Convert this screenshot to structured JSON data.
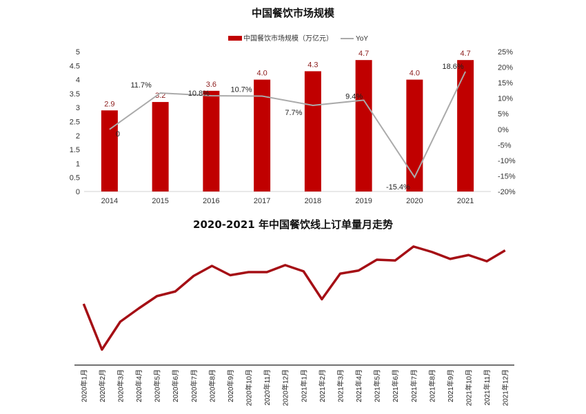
{
  "chart_data": [
    {
      "type": "bar+line",
      "title": "中国餐饮市场规模",
      "categories": [
        "2014",
        "2015",
        "2016",
        "2017",
        "2018",
        "2019",
        "2020",
        "2021"
      ],
      "series": [
        {
          "name": "中国餐饮市场规模（万亿元）",
          "type": "bar",
          "axis": "left",
          "color": "#c00000",
          "values": [
            2.9,
            3.2,
            3.6,
            4.0,
            4.3,
            4.7,
            4.0,
            4.7
          ],
          "labels": [
            "2.9",
            "3.2",
            "3.6",
            "4.0",
            "4.3",
            "4.7",
            "4.0",
            "4.7"
          ]
        },
        {
          "name": "YoY",
          "type": "line",
          "axis": "right",
          "color": "#aaaaaa",
          "values": [
            0,
            11.7,
            10.8,
            10.7,
            7.7,
            9.4,
            -15.4,
            18.6
          ],
          "labels": [
            "0",
            "11.7%",
            "10.8%",
            "10.7%",
            "7.7%",
            "9.4%",
            "-15.4%",
            "18.6%"
          ]
        }
      ],
      "ylim": [
        0,
        5
      ],
      "yticks": [
        "0",
        "0.5",
        "1",
        "1.5",
        "2",
        "2.5",
        "3",
        "3.5",
        "4",
        "4.5",
        "5"
      ],
      "y2lim": [
        -20,
        25
      ],
      "y2ticks": [
        "-20%",
        "-15%",
        "-10%",
        "-5%",
        "0%",
        "5%",
        "10%",
        "15%",
        "20%",
        "25%"
      ],
      "legend": "top",
      "grid": false
    },
    {
      "type": "line",
      "title": "2020-2021 年中国餐饮线上订单量月走势",
      "categories": [
        "2020年1月",
        "2020年2月",
        "2020年3月",
        "2020年4月",
        "2020年5月",
        "2020年6月",
        "2020年7月",
        "2020年8月",
        "2020年9月",
        "2020年10月",
        "2020年11月",
        "2020年12月",
        "2021年1月",
        "2021年2月",
        "2021年3月",
        "2021年4月",
        "2021年5月",
        "2021年6月",
        "2021年7月",
        "2021年8月",
        "2021年9月",
        "2021年10月",
        "2021年11月",
        "2021年12月"
      ],
      "values": [
        79,
        20,
        56,
        73,
        89,
        95,
        115,
        128,
        116,
        120,
        120,
        129,
        121,
        85,
        118,
        122,
        136,
        135,
        153,
        146,
        137,
        142,
        134,
        148
      ],
      "value_note_visible": false,
      "ylim": [
        0,
        160
      ],
      "color": "#a50f15",
      "grid": false
    }
  ]
}
